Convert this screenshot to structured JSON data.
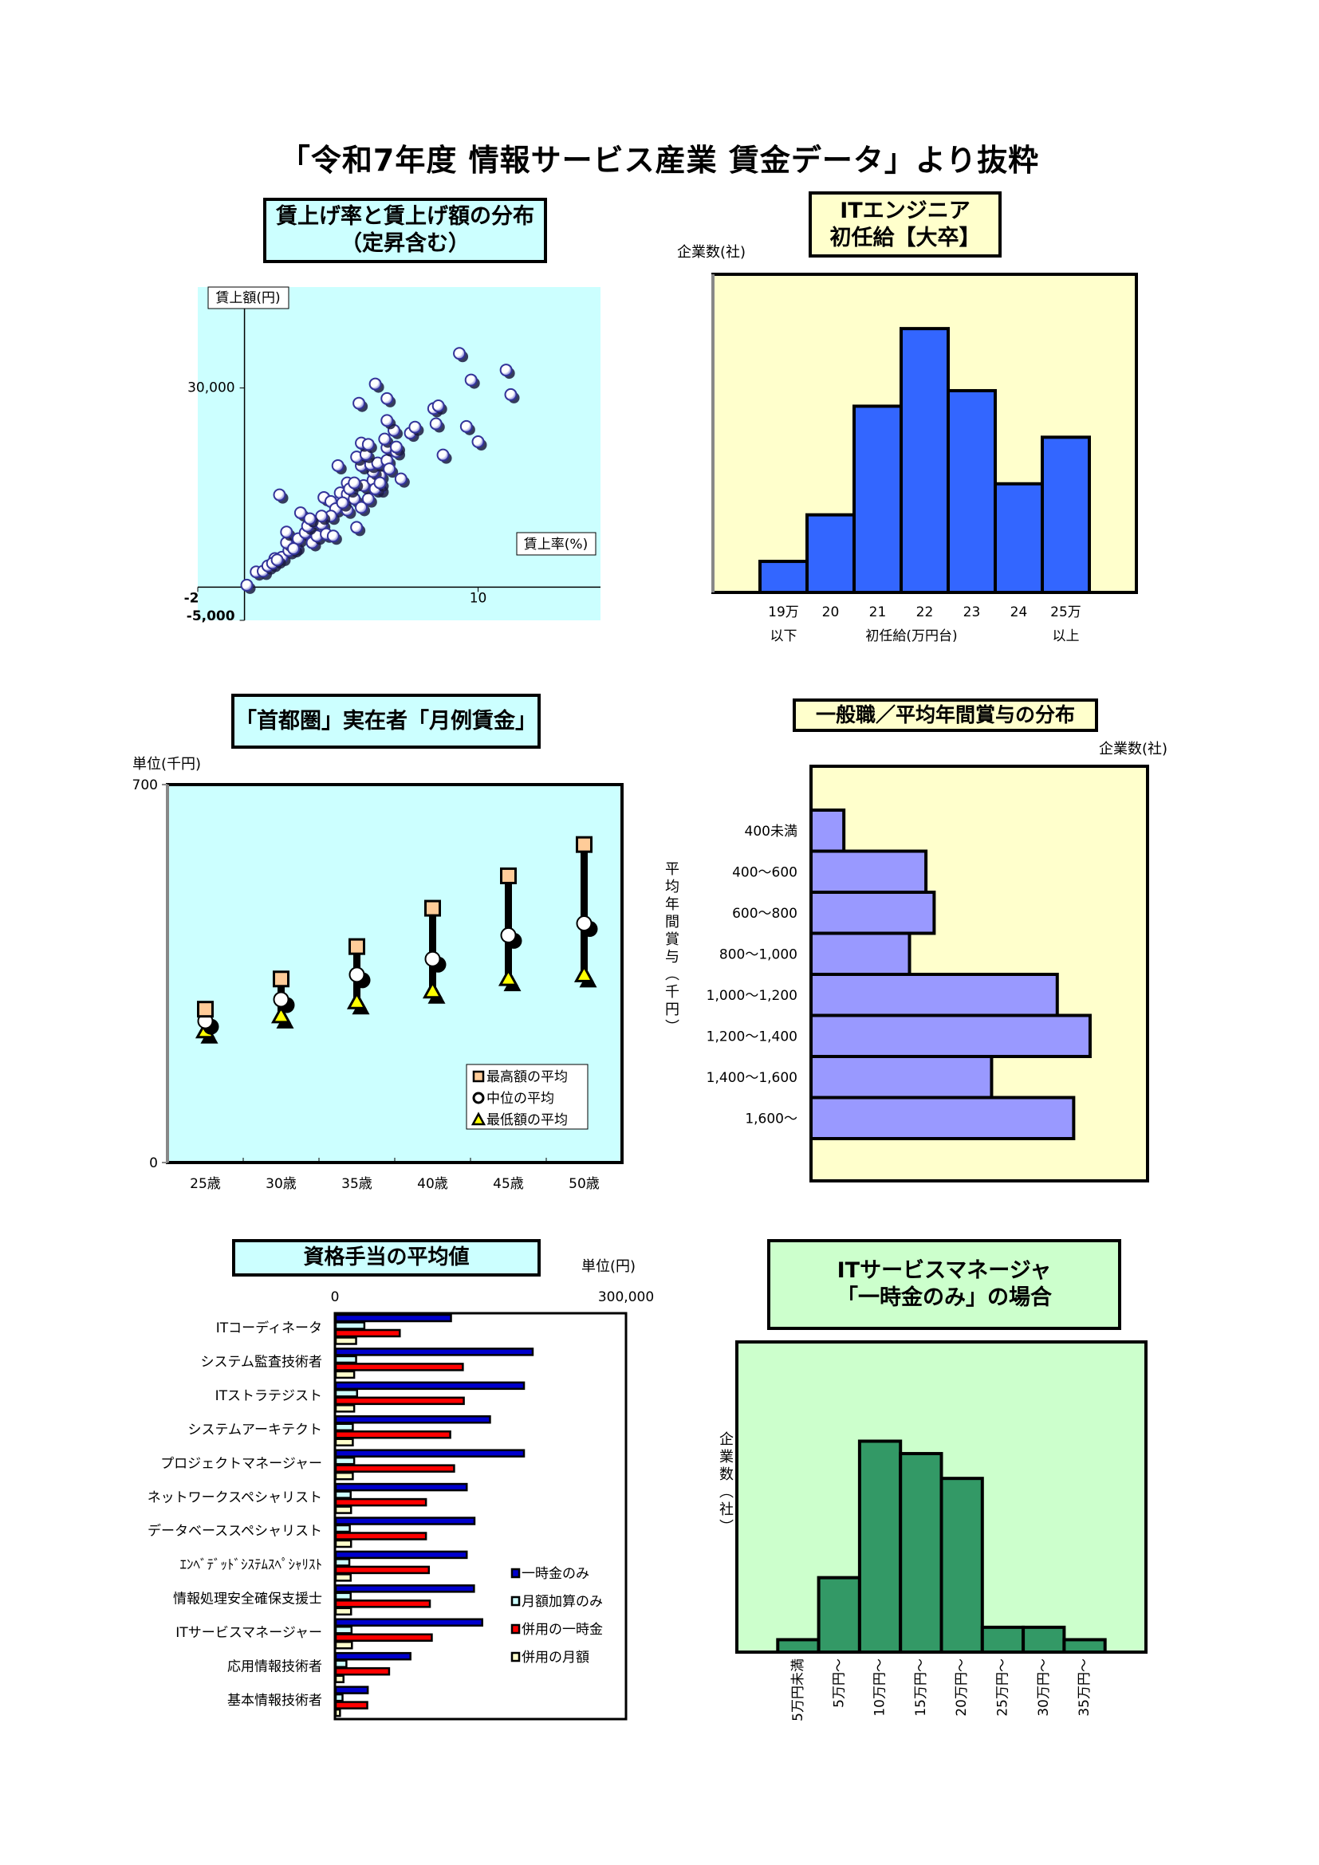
{
  "page": {
    "title": "「令和7年度 情報サービス産業 賃金データ」より抜粋"
  },
  "chart_data": [
    {
      "type": "scatter",
      "title_lines": [
        "賃上げ率と賃上げ額の分布",
        "（定昇含む）"
      ],
      "xlabel": "賃上率(%)",
      "ylabel": "賃上額(円)",
      "xlim": [
        -2,
        15.24
      ],
      "ylim": [
        -5000,
        45200
      ],
      "x_ticks": [
        {
          "value": -2,
          "label": "-2"
        },
        {
          "value": 10,
          "label": "10"
        }
      ],
      "y_ticks": [
        {
          "value": 30000,
          "label": "30,000"
        },
        {
          "value": -5000,
          "label": "-5,000"
        }
      ],
      "background": "#ccffff",
      "points": [
        [
          0.1,
          300
        ],
        [
          0.5,
          2300
        ],
        [
          0.8,
          2400
        ],
        [
          1.0,
          3200
        ],
        [
          1.3,
          4300
        ],
        [
          1.6,
          4500
        ],
        [
          1.9,
          5500
        ],
        [
          2.2,
          6100
        ],
        [
          1.8,
          6700
        ],
        [
          1.8,
          8300
        ],
        [
          2.3,
          7300
        ],
        [
          2.6,
          8200
        ],
        [
          2.9,
          6700
        ],
        [
          3.1,
          7700
        ],
        [
          2.7,
          9200
        ],
        [
          3.0,
          9900
        ],
        [
          3.3,
          9500
        ],
        [
          3.5,
          8000
        ],
        [
          3.8,
          7700
        ],
        [
          2.4,
          11200
        ],
        [
          1.5,
          13900
        ],
        [
          3.4,
          13500
        ],
        [
          3.7,
          12900
        ],
        [
          3.9,
          11800
        ],
        [
          4.1,
          14200
        ],
        [
          4.4,
          11600
        ],
        [
          4.4,
          14000
        ],
        [
          4.7,
          13300
        ],
        [
          5.0,
          12000
        ],
        [
          5.3,
          13300
        ],
        [
          5.1,
          15300
        ],
        [
          5.5,
          16100
        ],
        [
          5.8,
          14800
        ],
        [
          5.8,
          16800
        ],
        [
          5.5,
          17400
        ],
        [
          5.0,
          18300
        ],
        [
          5.4,
          18500
        ],
        [
          5.7,
          18700
        ],
        [
          6.1,
          19100
        ],
        [
          6.2,
          17800
        ],
        [
          4.8,
          19600
        ],
        [
          5.2,
          20000
        ],
        [
          5.0,
          21700
        ],
        [
          5.3,
          21500
        ],
        [
          6.1,
          21000
        ],
        [
          6.5,
          20400
        ],
        [
          6.0,
          22300
        ],
        [
          6.5,
          21100
        ],
        [
          6.4,
          23600
        ],
        [
          6.1,
          25100
        ],
        [
          7.1,
          23200
        ],
        [
          7.3,
          24100
        ],
        [
          6.7,
          16300
        ],
        [
          4.8,
          9000
        ],
        [
          4.0,
          18300
        ],
        [
          4.9,
          27700
        ],
        [
          6.1,
          28400
        ],
        [
          5.6,
          30600
        ],
        [
          8.1,
          26900
        ],
        [
          8.3,
          27300
        ],
        [
          8.2,
          24600
        ],
        [
          8.5,
          19900
        ],
        [
          9.5,
          24200
        ],
        [
          10.0,
          21900
        ],
        [
          9.7,
          31200
        ],
        [
          9.2,
          35200
        ],
        [
          11.2,
          32700
        ],
        [
          11.4,
          29000
        ],
        [
          4.4,
          15700
        ],
        [
          3.7,
          10700
        ],
        [
          3.3,
          10700
        ],
        [
          2.8,
          10300
        ],
        [
          2.1,
          5800
        ],
        [
          1.2,
          3600
        ],
        [
          1.4,
          4100
        ],
        [
          4.2,
          12700
        ],
        [
          4.5,
          14800
        ],
        [
          4.7,
          15700
        ],
        [
          5.6,
          14800
        ],
        [
          5.8,
          15700
        ]
      ]
    },
    {
      "type": "bar",
      "title_lines": [
        "ITエンジニア",
        "初任給【大卒】"
      ],
      "ylabel": "企業数(社)",
      "xlabel": "初任給(万円台)",
      "categories": [
        [
          "19万",
          "以下"
        ],
        [
          "20"
        ],
        [
          "21"
        ],
        [
          "22"
        ],
        [
          "23"
        ],
        [
          "24"
        ],
        [
          "25万",
          "以上"
        ]
      ],
      "values": [
        2,
        5,
        12,
        17,
        13,
        7,
        10
      ],
      "ylim": [
        0,
        20.5
      ],
      "background": "#ffffcc",
      "bar_color": "#3366ff"
    },
    {
      "type": "line",
      "subtype": "high-low",
      "title": "「首都圏」実在者「月例賃金」",
      "ylabel": "単位(千円)",
      "categories": [
        "25歳",
        "30歳",
        "35歳",
        "40歳",
        "45歳",
        "50歳"
      ],
      "ylim": [
        0,
        700
      ],
      "y_ticks": [
        {
          "value": 700,
          "label": "700"
        },
        {
          "value": 0,
          "label": "0"
        }
      ],
      "legend": "bottom-right",
      "background": "#ccffff",
      "series": [
        {
          "name": "最高額の平均",
          "values": [
            284,
            340,
            400,
            471,
            531,
            589
          ],
          "color": "#ffcc99"
        },
        {
          "name": "中位の平均",
          "values": [
            262,
            302,
            348,
            377,
            421,
            443
          ],
          "color": "#ffffff"
        },
        {
          "name": "最低額の平均",
          "values": [
            241,
            269,
            295,
            315,
            338,
            345
          ],
          "color": "#ffff00"
        }
      ]
    },
    {
      "type": "bar",
      "orientation": "horizontal",
      "title": "一般職／平均年間賞与の分布",
      "xlabel": "企業数(社)",
      "ylabel": "平均年間賞与（千円）",
      "categories": [
        "400未満",
        "400～600",
        "600～800",
        "800～1,000",
        "1,000～1,200",
        "1,200～1,400",
        "1,400～1,600",
        "1,600～"
      ],
      "values": [
        2,
        7,
        7.5,
        6,
        15,
        17,
        11,
        16
      ],
      "xlim": [
        0,
        20.5
      ],
      "background": "#ffffcc",
      "bar_color": "#9999ff"
    },
    {
      "type": "bar",
      "orientation": "horizontal",
      "title": "資格手当の平均値",
      "unit": "単位(円)",
      "x_ticks": [
        {
          "value": 0,
          "label": "0"
        },
        {
          "value": 300000,
          "label": "300,000"
        }
      ],
      "xlim": [
        0,
        300000
      ],
      "legend": "bottom-right",
      "categories": [
        "ITコーディネータ",
        "システム監査技術者",
        "ITストラテジスト",
        "システムアーキテクト",
        "プロジェクトマネージャー",
        "ネットワークスペシャリスト",
        "データベーススペシャリスト",
        "ｴﾝﾍﾞﾃﾞｯﾄﾞｼｽﾃﾑｽﾍﾟｼｬﾘｽﾄ",
        "情報処理安全確保支援士",
        "ITサービスマネージャー",
        "応用情報技術者",
        "基本情報技術者"
      ],
      "series": [
        {
          "name": "一時金のみ",
          "color": "#0000cc",
          "values": [
            118800,
            203000,
            194000,
            159000,
            194000,
            135000,
            143000,
            135000,
            142500,
            151000,
            77000,
            33000
          ]
        },
        {
          "name": "月額加算のみ",
          "color": "#ccffff",
          "values": [
            29500,
            21000,
            22000,
            17600,
            19000,
            15400,
            14500,
            14000,
            15400,
            16300,
            11000,
            7000
          ]
        },
        {
          "name": "併用の一時金",
          "color": "#ff0000",
          "values": [
            66000,
            131000,
            132000,
            118000,
            122000,
            93000,
            93000,
            96000,
            97000,
            99000,
            55000,
            32500
          ]
        },
        {
          "name": "併用の月額",
          "color": "#ffffcc",
          "values": [
            21000,
            19000,
            19000,
            17600,
            17600,
            15800,
            15800,
            15400,
            15800,
            16700,
            8000,
            4400
          ]
        }
      ]
    },
    {
      "type": "bar",
      "title_lines": [
        "ITサービスマネージャ",
        "「一時金のみ」の場合"
      ],
      "ylabel": "企業数（社）",
      "categories": [
        "5万円未満",
        "5万円～",
        "10万円～",
        "15万円～",
        "20万円～",
        "25万円～",
        "30万円～",
        "35万円～"
      ],
      "values": [
        1,
        6,
        17,
        16,
        14,
        2,
        2,
        1
      ],
      "ylim": [
        0,
        25
      ],
      "background": "#ccffcc",
      "bar_color": "#339966"
    }
  ]
}
